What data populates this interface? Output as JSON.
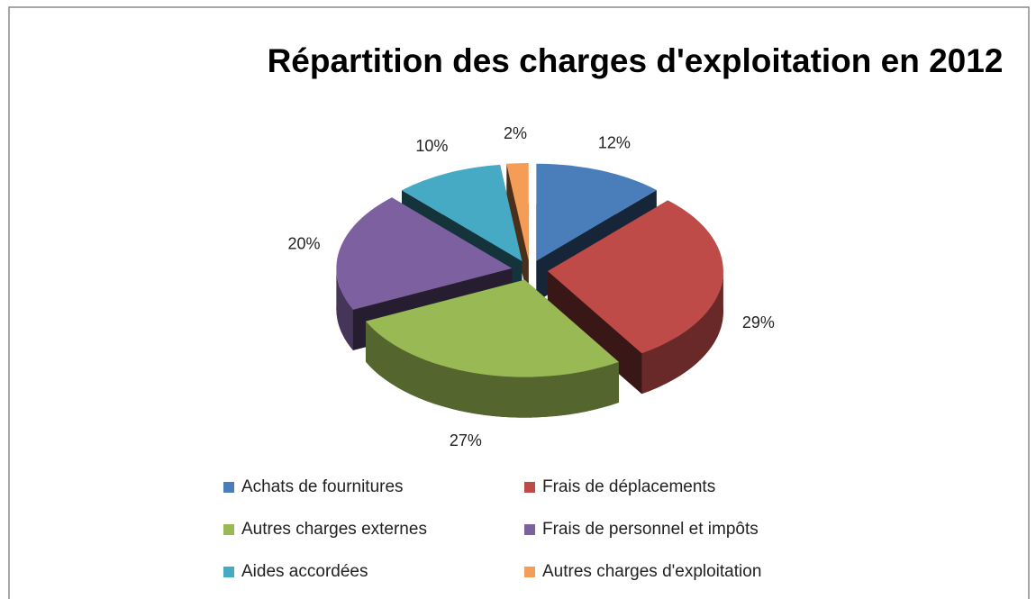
{
  "chart_data": {
    "type": "pie",
    "title": "Répartition des charges d'exploitation en 2012",
    "categories": [
      "Achats de fournitures",
      "Frais de déplacements",
      "Autres charges externes",
      "Frais de personnel et impôts",
      "Aides accordées",
      "Autres charges d'exploitation"
    ],
    "values": [
      12,
      29,
      27,
      20,
      10,
      2
    ],
    "value_labels": [
      "12%",
      "29%",
      "27%",
      "20%",
      "10%",
      "2%"
    ],
    "colors": [
      "#4a7ebb",
      "#be4b48",
      "#98b954",
      "#7d60a0",
      "#46aac5",
      "#f59d56"
    ],
    "legend": "bottom"
  }
}
